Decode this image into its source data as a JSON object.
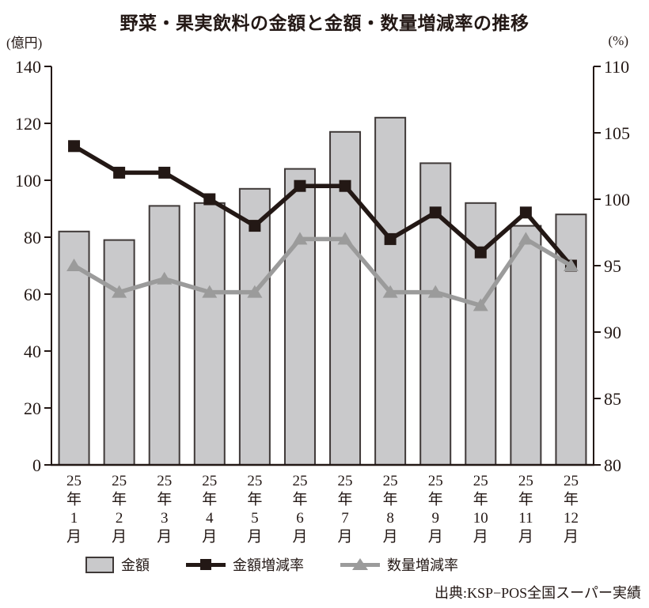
{
  "header": {
    "title": "野菜・果実飲料の金額と金額・数量増減率の推移"
  },
  "footer": {
    "source": "出典:KSP−POS全国スーパー実績"
  },
  "chart_data": {
    "type": "combo-bar-line",
    "categories": [
      "25年1月",
      "25年2月",
      "25年3月",
      "25年4月",
      "25年5月",
      "25年6月",
      "25年7月",
      "25年8月",
      "25年9月",
      "25年10月",
      "25年11月",
      "25年12月"
    ],
    "bar_series": {
      "name": "金額",
      "axis": "left",
      "unit": "億円",
      "values": [
        82,
        79,
        91,
        92,
        97,
        104,
        117,
        122,
        106,
        92,
        84,
        88
      ],
      "fill_color": "#c9c9cb",
      "border_color": "#3f3938"
    },
    "line_series": [
      {
        "name": "金額増減率",
        "axis": "right",
        "unit": "%",
        "marker": "square",
        "color": "#231815",
        "values": [
          104,
          102,
          102,
          100,
          98,
          101,
          101,
          97,
          99,
          96,
          99,
          95
        ]
      },
      {
        "name": "数量増減率",
        "axis": "right",
        "unit": "%",
        "marker": "triangle",
        "color": "#9b9b9b",
        "values": [
          95,
          93,
          94,
          93,
          93,
          97,
          97,
          93,
          93,
          92,
          97,
          95
        ]
      }
    ],
    "left_axis": {
      "label": "(億円)",
      "min": 0,
      "max": 140,
      "ticks": [
        0,
        20,
        40,
        60,
        80,
        100,
        120,
        140
      ]
    },
    "right_axis": {
      "label": "(%)",
      "min": 80,
      "max": 110,
      "ticks": [
        80,
        85,
        90,
        95,
        100,
        105,
        110
      ]
    },
    "grid": false,
    "legend_position": "bottom",
    "axis_color": "#231815"
  }
}
